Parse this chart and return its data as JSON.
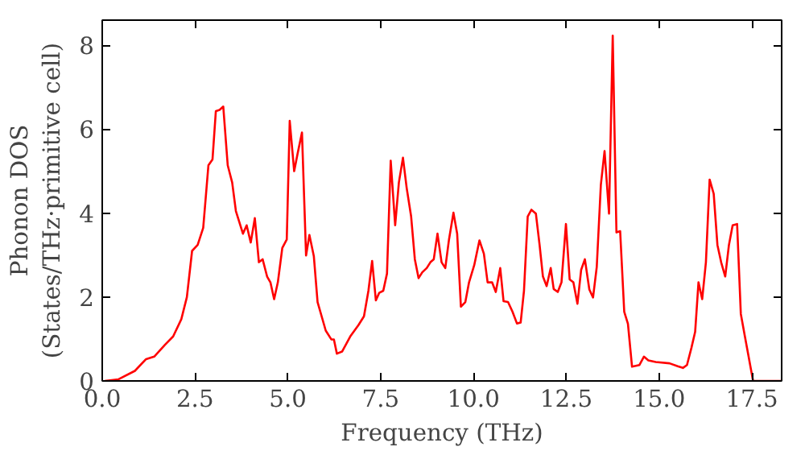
{
  "chart_data": {
    "type": "line",
    "xlabel": "Frequency (THz)",
    "ylabel": "Phonon DOS\n(States/THz·primitive cell)",
    "x": [
      0.07,
      0.44,
      0.88,
      1.18,
      1.4,
      1.69,
      1.91,
      2.13,
      2.28,
      2.42,
      2.57,
      2.72,
      2.86,
      2.97,
      3.06,
      3.16,
      3.26,
      3.38,
      3.5,
      3.6,
      3.79,
      3.89,
      4.0,
      4.11,
      4.22,
      4.32,
      4.44,
      4.53,
      4.63,
      4.73,
      4.85,
      4.97,
      5.05,
      5.17,
      5.26,
      5.38,
      5.49,
      5.58,
      5.7,
      5.8,
      6.02,
      6.17,
      6.24,
      6.32,
      6.46,
      6.68,
      6.9,
      7.05,
      7.17,
      7.27,
      7.37,
      7.46,
      7.57,
      7.67,
      7.77,
      7.89,
      7.99,
      8.1,
      8.2,
      8.32,
      8.42,
      8.52,
      8.62,
      8.74,
      8.84,
      8.93,
      9.03,
      9.14,
      9.24,
      9.34,
      9.46,
      9.56,
      9.66,
      9.78,
      9.88,
      10.02,
      10.16,
      10.28,
      10.38,
      10.5,
      10.6,
      10.72,
      10.81,
      10.93,
      11.05,
      11.17,
      11.27,
      11.36,
      11.46,
      11.56,
      11.68,
      11.78,
      11.87,
      11.97,
      12.08,
      12.16,
      12.27,
      12.37,
      12.49,
      12.59,
      12.69,
      12.8,
      12.9,
      13.0,
      13.12,
      13.22,
      13.32,
      13.43,
      13.53,
      13.65,
      13.75,
      13.85,
      13.95,
      14.06,
      14.16,
      14.27,
      14.47,
      14.59,
      14.71,
      14.91,
      15.28,
      15.5,
      15.64,
      15.75,
      15.87,
      15.97,
      16.06,
      16.16,
      16.26,
      16.36,
      16.47,
      16.57,
      16.67,
      16.78,
      16.88,
      16.98,
      17.1,
      17.2,
      17.31,
      17.41,
      17.53,
      18.29
    ],
    "series": [
      {
        "color": "#ff0000",
        "values": [
          0,
          0.04,
          0.24,
          0.52,
          0.58,
          0.86,
          1.06,
          1.47,
          2.0,
          3.1,
          3.24,
          3.65,
          5.14,
          5.28,
          6.43,
          6.46,
          6.54,
          5.14,
          4.73,
          4.05,
          3.51,
          3.71,
          3.3,
          3.88,
          2.83,
          2.9,
          2.49,
          2.35,
          1.95,
          2.35,
          3.17,
          3.37,
          6.2,
          5.0,
          5.41,
          5.92,
          2.99,
          3.48,
          2.97,
          1.88,
          1.2,
          0.99,
          0.99,
          0.65,
          0.7,
          1.06,
          1.33,
          1.54,
          2.15,
          2.86,
          1.92,
          2.1,
          2.15,
          2.56,
          5.25,
          3.71,
          4.73,
          5.32,
          4.6,
          3.92,
          2.9,
          2.45,
          2.59,
          2.69,
          2.83,
          2.9,
          3.51,
          2.83,
          2.69,
          3.37,
          4.01,
          3.51,
          1.77,
          1.88,
          2.35,
          2.76,
          3.35,
          3.03,
          2.35,
          2.35,
          2.12,
          2.69,
          1.9,
          1.88,
          1.65,
          1.37,
          1.39,
          2.15,
          3.92,
          4.08,
          3.99,
          3.24,
          2.49,
          2.26,
          2.69,
          2.19,
          2.12,
          2.35,
          3.74,
          2.42,
          2.35,
          1.84,
          2.65,
          2.9,
          2.18,
          1.99,
          2.72,
          4.67,
          5.48,
          3.99,
          8.23,
          3.54,
          3.57,
          1.65,
          1.36,
          0.34,
          0.38,
          0.58,
          0.49,
          0.45,
          0.42,
          0.35,
          0.31,
          0.38,
          0.79,
          1.17,
          2.35,
          1.95,
          2.83,
          4.8,
          4.46,
          3.24,
          2.83,
          2.49,
          3.24,
          3.71,
          3.74,
          1.6,
          1.06,
          0.58,
          0,
          0
        ]
      }
    ],
    "xlim": [
      0,
      18.3
    ],
    "ylim": [
      0,
      8.6
    ],
    "xticks": [
      {
        "value": 0,
        "label": "0.0"
      },
      2.5,
      {
        "value": 5,
        "label": "5.0"
      },
      7.5,
      {
        "value": 10,
        "label": "10.0"
      },
      12.5,
      {
        "value": 15,
        "label": "15.0"
      },
      17.5
    ],
    "yticks": [
      0,
      2,
      4,
      6,
      8
    ],
    "grid": false,
    "marker": "none",
    "line_style": "solid"
  }
}
